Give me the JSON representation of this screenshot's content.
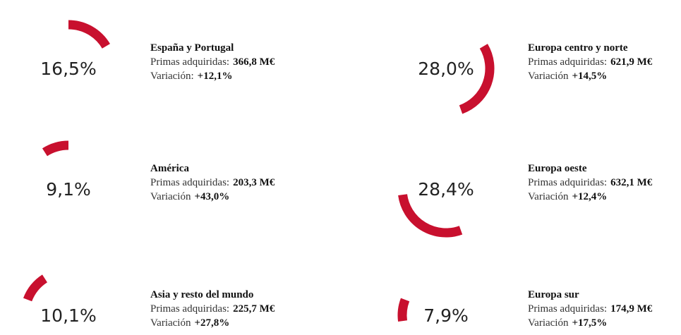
{
  "chart_data": {
    "type": "arc",
    "categories": [
      "España y Portugal",
      "Europa centro y norte",
      "Europa oeste",
      "Europa sur",
      "Asia y resto del mundo",
      "América"
    ],
    "values": [
      16.5,
      28.0,
      28.4,
      7.9,
      10.1,
      9.1
    ],
    "value_labels": [
      "16,5%",
      "28,0%",
      "28,4%",
      "7,9%",
      "10,1%",
      "9,1%"
    ],
    "primas_titles": [
      "Primas adquiridas:",
      "Primas adquiridas:",
      "Primas adquiridas:",
      "Primas adquiridas:",
      "Primas adquiridas:",
      "Primas adquiridas:"
    ],
    "primas": [
      "366,8 M€",
      "621,9 M€",
      "632,1 M€",
      "174,9 M€",
      "225,7 M€",
      "203,3 M€"
    ],
    "variacion_titles": [
      "Variación:",
      "Variación",
      "Variación",
      "Variación",
      "Variación",
      "Variación"
    ],
    "variacion": [
      "+12,1%",
      "+14,5%",
      "+12,4%",
      "+17,5%",
      "+27,8%",
      "+43,0%"
    ],
    "color": "#c8102e"
  }
}
